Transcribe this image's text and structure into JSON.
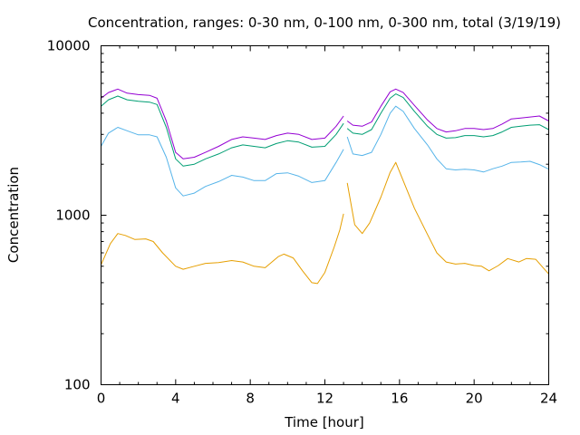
{
  "chart_data": {
    "type": "line",
    "title": "Concentration, ranges: 0-30 nm, 0-100 nm, 0-300 nm, total (3/19/19)",
    "xlabel": "Time [hour]",
    "ylabel": "Concentration",
    "xlim": [
      0,
      24
    ],
    "ylim": [
      100,
      10000
    ],
    "yscale": "log",
    "grid": false,
    "legend": "none",
    "x_ticks": [
      0,
      4,
      8,
      12,
      16,
      20,
      24
    ],
    "x_tick_labels": [
      "0",
      "4",
      "8",
      "12",
      "16",
      "20",
      "24"
    ],
    "y_major_ticks": [
      100,
      1000,
      10000
    ],
    "y_tick_labels": [
      "100",
      "1000",
      "10000"
    ],
    "series": [
      {
        "color": "#e69f00",
        "x": [
          0,
          0.5,
          0.9,
          1.3,
          1.8,
          2.4,
          2.8,
          3.3,
          4,
          4.4,
          5,
          5.6,
          6.3,
          7,
          7.6,
          8.2,
          8.8,
          9.5,
          9.8,
          10.3,
          10.8,
          11.3,
          11.6,
          12,
          12.5,
          12.8,
          13,
          null,
          13.2,
          13.6,
          14,
          14.4,
          15,
          15.5,
          15.8,
          16.2,
          16.8,
          17.5,
          18,
          18.5,
          19,
          19.5,
          20,
          20.4,
          20.8,
          21.3,
          21.8,
          22.4,
          22.8,
          23.3,
          23.7,
          24
        ],
        "y": [
          510,
          680,
          780,
          760,
          720,
          725,
          700,
          600,
          500,
          480,
          500,
          520,
          525,
          540,
          530,
          500,
          490,
          570,
          590,
          560,
          470,
          400,
          395,
          460,
          650,
          820,
          1020,
          null,
          1550,
          880,
          780,
          900,
          1280,
          1790,
          2050,
          1600,
          1100,
          770,
          600,
          530,
          515,
          520,
          505,
          500,
          470,
          505,
          555,
          530,
          555,
          550,
          490,
          450
        ]
      },
      {
        "color": "#56b4e9",
        "x": [
          0,
          0.4,
          0.9,
          1.4,
          2,
          2.6,
          3,
          3.5,
          4,
          4.4,
          5,
          5.6,
          6.3,
          7,
          7.6,
          8.2,
          8.8,
          9.4,
          10,
          10.6,
          11.3,
          12,
          12.6,
          13,
          null,
          13.2,
          13.5,
          14,
          14.5,
          15,
          15.5,
          15.8,
          16.2,
          16.8,
          17.5,
          18,
          18.5,
          19,
          19.5,
          20,
          20.5,
          21,
          21.5,
          22,
          22.5,
          23,
          23.5,
          24
        ],
        "y": [
          2550,
          3050,
          3300,
          3150,
          2980,
          2980,
          2900,
          2200,
          1450,
          1300,
          1350,
          1480,
          1580,
          1720,
          1680,
          1600,
          1600,
          1760,
          1780,
          1700,
          1560,
          1600,
          2050,
          2450,
          null,
          2900,
          2300,
          2250,
          2350,
          3000,
          4000,
          4400,
          4100,
          3250,
          2600,
          2150,
          1880,
          1850,
          1870,
          1850,
          1800,
          1880,
          1950,
          2050,
          2060,
          2080,
          1990,
          1870
        ]
      },
      {
        "color": "#009e73",
        "x": [
          0,
          0.4,
          0.9,
          1.4,
          2,
          2.6,
          3,
          3.5,
          4,
          4.4,
          5,
          5.6,
          6.3,
          7,
          7.6,
          8.2,
          8.8,
          9.4,
          10,
          10.6,
          11.3,
          12,
          12.6,
          13,
          null,
          13.2,
          13.5,
          14,
          14.5,
          15,
          15.5,
          15.8,
          16.2,
          16.8,
          17.5,
          18,
          18.5,
          19,
          19.5,
          20,
          20.5,
          21,
          21.5,
          22,
          22.5,
          23,
          23.5,
          24
        ],
        "y": [
          4400,
          4800,
          5050,
          4800,
          4700,
          4650,
          4500,
          3300,
          2150,
          1950,
          2000,
          2150,
          2300,
          2500,
          2600,
          2550,
          2500,
          2650,
          2750,
          2700,
          2520,
          2550,
          3000,
          3480,
          null,
          3250,
          3050,
          3000,
          3200,
          4000,
          4900,
          5200,
          4950,
          4100,
          3350,
          3000,
          2850,
          2870,
          2950,
          2950,
          2900,
          2950,
          3100,
          3300,
          3350,
          3400,
          3420,
          3200
        ]
      },
      {
        "color": "#9400d3",
        "x": [
          0,
          0.4,
          0.9,
          1.4,
          2,
          2.6,
          3,
          3.5,
          4,
          4.4,
          5,
          5.6,
          6.3,
          7,
          7.6,
          8.2,
          8.8,
          9.4,
          10,
          10.6,
          11.3,
          12,
          12.6,
          13,
          null,
          13.2,
          13.5,
          14,
          14.5,
          15,
          15.5,
          15.8,
          16.2,
          16.8,
          17.5,
          18,
          18.5,
          19,
          19.5,
          20,
          20.5,
          21,
          21.5,
          22,
          22.5,
          23,
          23.5,
          24
        ],
        "y": [
          4900,
          5300,
          5550,
          5250,
          5150,
          5100,
          4900,
          3600,
          2350,
          2150,
          2200,
          2350,
          2550,
          2800,
          2900,
          2850,
          2800,
          2950,
          3050,
          3000,
          2800,
          2850,
          3350,
          3850,
          null,
          3600,
          3400,
          3350,
          3550,
          4400,
          5350,
          5550,
          5300,
          4450,
          3650,
          3250,
          3100,
          3150,
          3250,
          3250,
          3200,
          3250,
          3450,
          3700,
          3750,
          3800,
          3850,
          3600
        ]
      }
    ]
  }
}
